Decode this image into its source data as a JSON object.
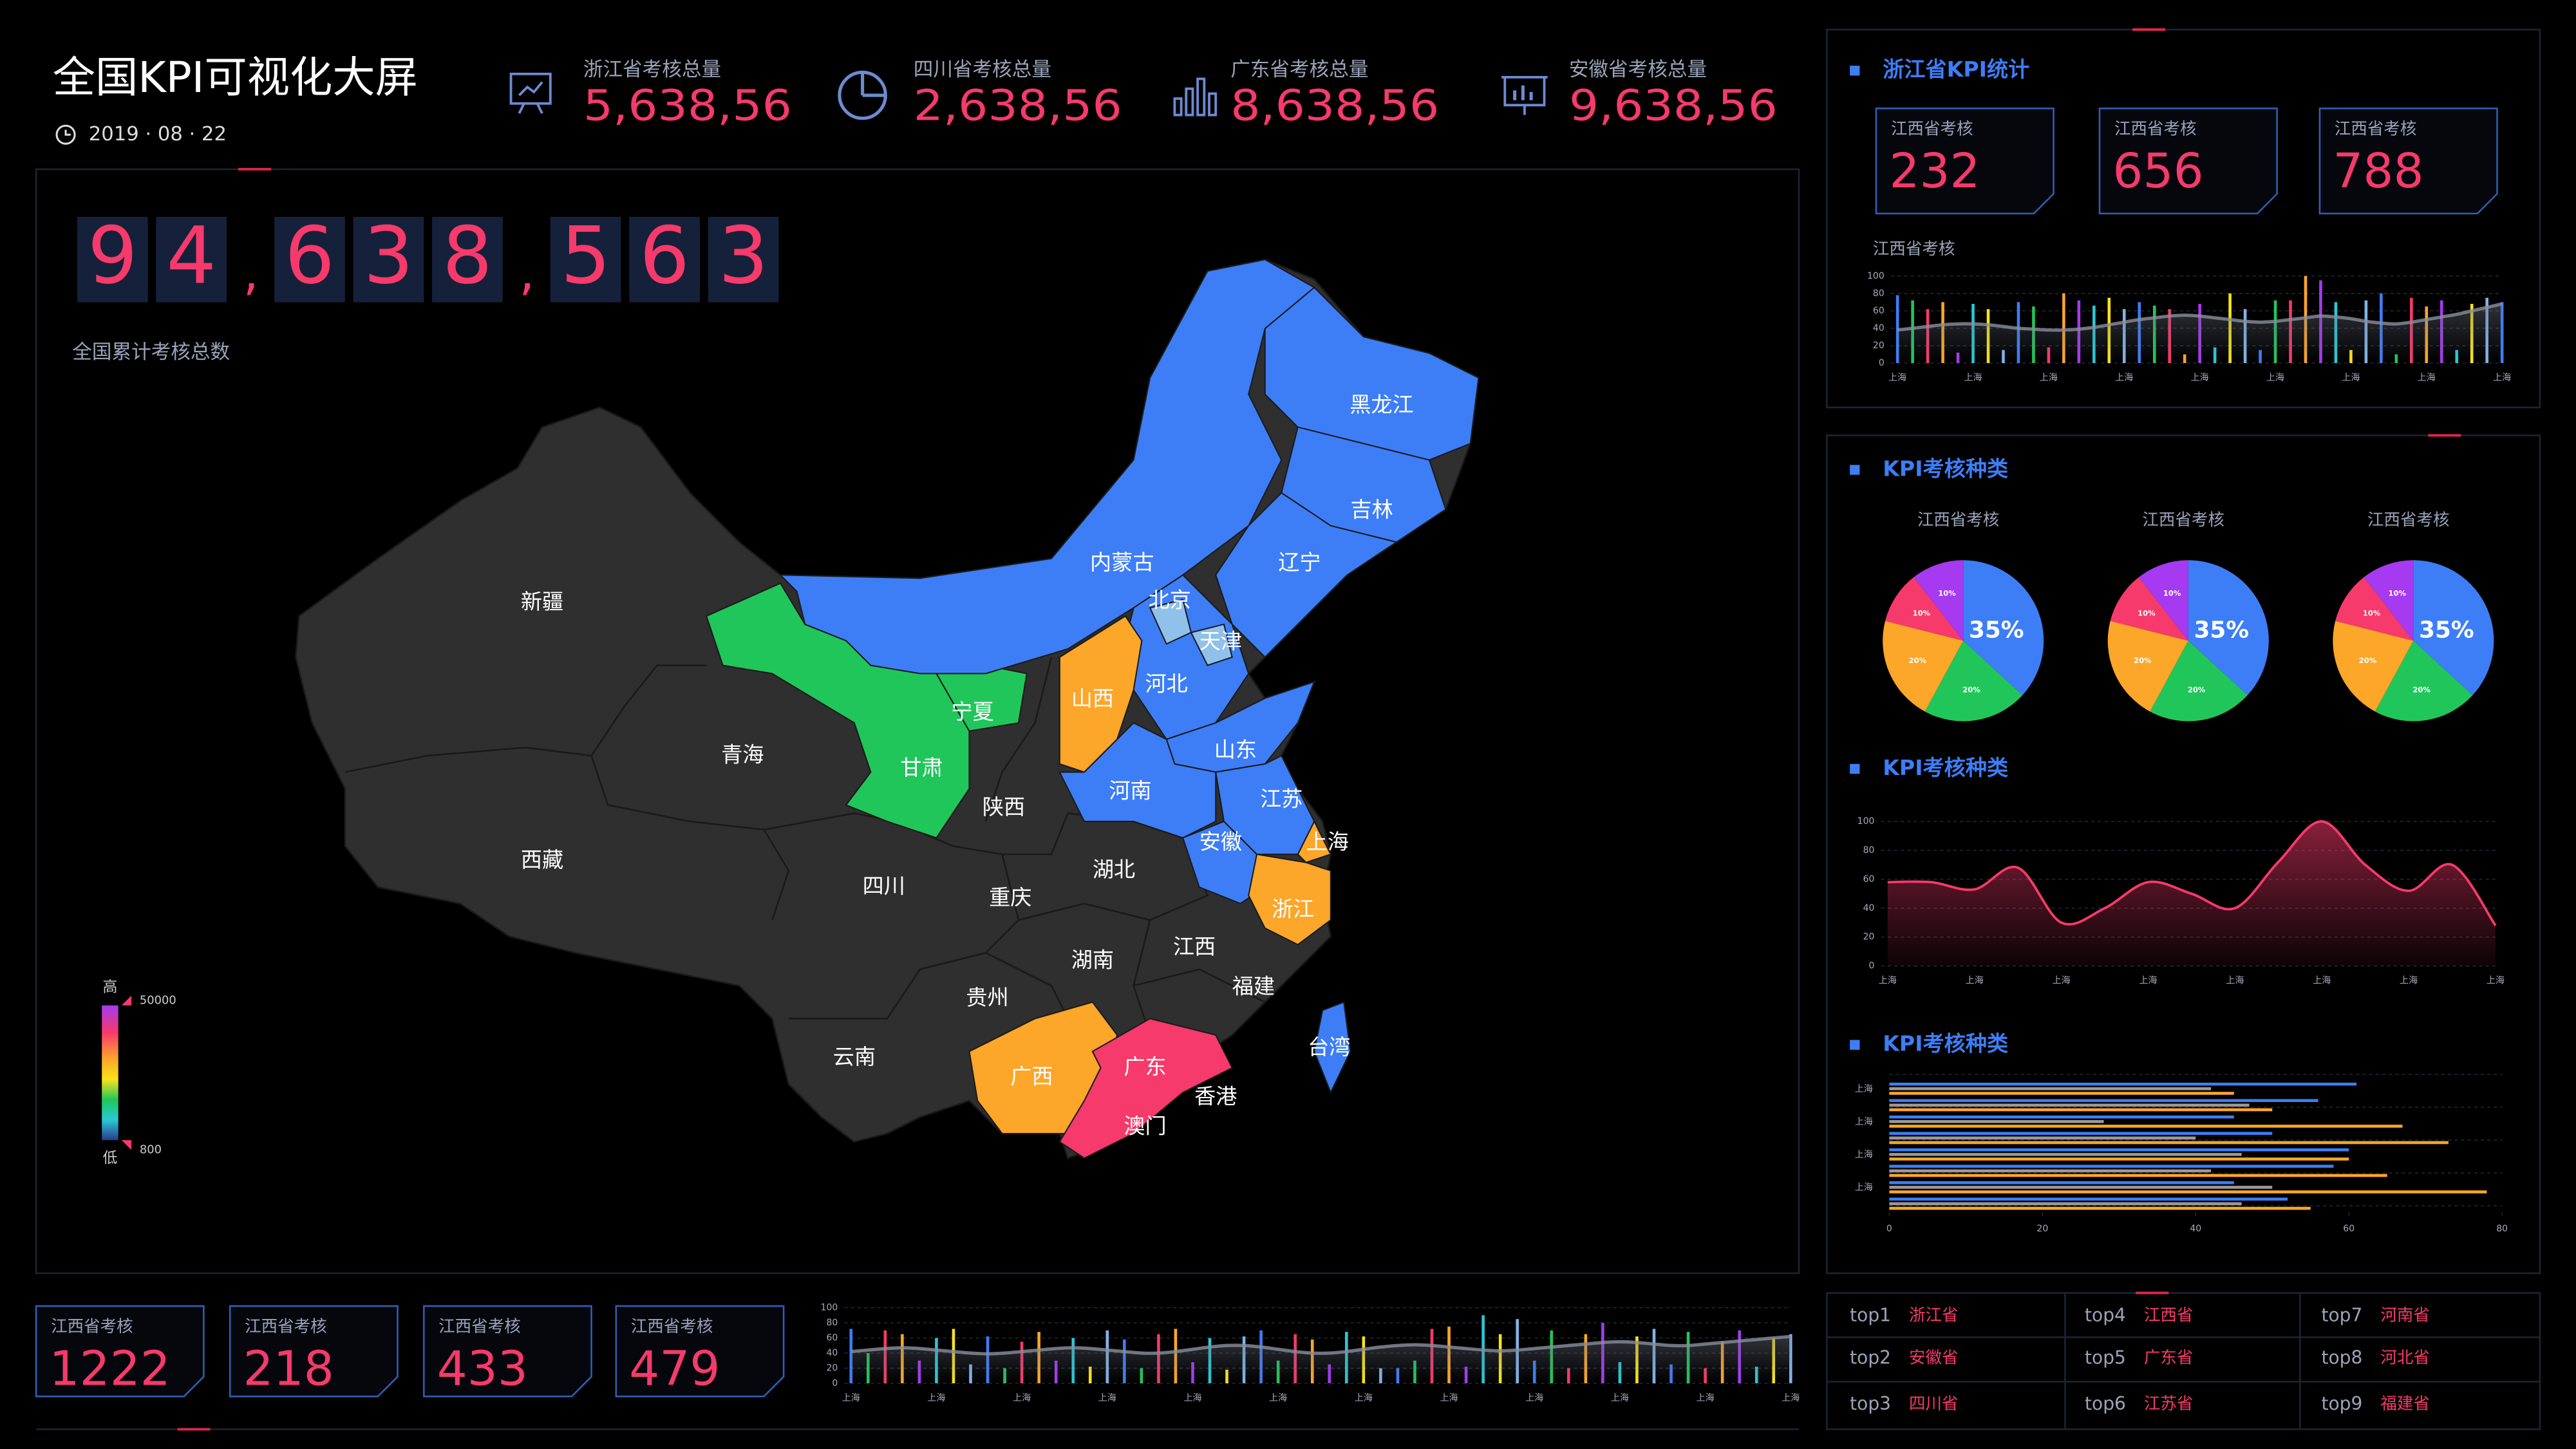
{
  "header": {
    "title": "全国KPI可视化大屏",
    "date": "2019 · 08 · 22",
    "stats": [
      {
        "label": "浙江省考核总量",
        "value": "5,638,56"
      },
      {
        "label": "四川省考核总量",
        "value": "2,638,56"
      },
      {
        "label": "广东省考核总量",
        "value": "8,638,56"
      },
      {
        "label": "安徽省考核总量",
        "value": "9,638,56"
      }
    ]
  },
  "total": {
    "digits": [
      "9",
      "4",
      ",",
      "6",
      "3",
      "8",
      ",",
      "5",
      "6",
      "3"
    ],
    "label": "全国累计考核总数"
  },
  "map": {
    "base_color": "#2f2f2f",
    "provinces": [
      {
        "name": "新疆"
      },
      {
        "name": "西藏"
      },
      {
        "name": "青海"
      },
      {
        "name": "甘肃",
        "color": "#21c65b"
      },
      {
        "name": "宁夏",
        "color": "#21c65b"
      },
      {
        "name": "内蒙古",
        "color": "#3d7ef7"
      },
      {
        "name": "黑龙江",
        "color": "#3d7ef7"
      },
      {
        "name": "吉林",
        "color": "#3d7ef7"
      },
      {
        "name": "辽宁",
        "color": "#3d7ef7"
      },
      {
        "name": "北京",
        "color": "#8fc1ea"
      },
      {
        "name": "天津",
        "color": "#8fc1ea"
      },
      {
        "name": "河北",
        "color": "#3d7ef7"
      },
      {
        "name": "山西",
        "color": "#fca62a"
      },
      {
        "name": "山东",
        "color": "#3d7ef7"
      },
      {
        "name": "河南",
        "color": "#3d7ef7"
      },
      {
        "name": "陕西"
      },
      {
        "name": "四川"
      },
      {
        "name": "重庆"
      },
      {
        "name": "湖北"
      },
      {
        "name": "安徽",
        "color": "#3d7ef7"
      },
      {
        "name": "江苏",
        "color": "#3d7ef7"
      },
      {
        "name": "上海",
        "color": "#fca62a"
      },
      {
        "name": "浙江",
        "color": "#fca62a"
      },
      {
        "name": "江西"
      },
      {
        "name": "湖南"
      },
      {
        "name": "贵州"
      },
      {
        "name": "云南"
      },
      {
        "name": "广西",
        "color": "#fca62a"
      },
      {
        "name": "广东",
        "color": "#f63a6b"
      },
      {
        "name": "福建"
      },
      {
        "name": "香港"
      },
      {
        "name": "澳门"
      },
      {
        "name": "台湾",
        "color": "#3d7ef7"
      }
    ],
    "legend": {
      "high": "高",
      "low": "低",
      "max": 50000,
      "min": 800
    }
  },
  "zhejiang_panel": {
    "title": "浙江省KPI统计",
    "cards": [
      {
        "label": "江西省考核",
        "value": 232
      },
      {
        "label": "江西省考核",
        "value": 656
      },
      {
        "label": "江西省考核",
        "value": 788
      }
    ],
    "chart": {
      "type": "bar",
      "title": "江西省考核",
      "ylim": [
        0,
        100
      ],
      "yticks": [
        0,
        20,
        40,
        60,
        80,
        100
      ],
      "categories": [
        "上海",
        null,
        null,
        null,
        null,
        "上海",
        null,
        null,
        null,
        null,
        "上海",
        null,
        null,
        null,
        null,
        "上海",
        null,
        null,
        null,
        null,
        "上海",
        null,
        null,
        null,
        null,
        "上海",
        null,
        null,
        null,
        null,
        "上海",
        null,
        null,
        null,
        null,
        "上海",
        null,
        null,
        null,
        null,
        "上海"
      ],
      "series": [
        {
          "type": "bar",
          "colors": [
            "#3d7ef7",
            "#21c65b",
            "#f63a6b",
            "#fca62a",
            "#a53af0",
            "#29c9d6",
            "#f7e31b",
            "#7fb4e8"
          ],
          "values": [
            78,
            72,
            62,
            70,
            12,
            68,
            62,
            15,
            70,
            65,
            18,
            80,
            72,
            66,
            75,
            62,
            70,
            66,
            62,
            10,
            68,
            18,
            80,
            62,
            15,
            72,
            72,
            100,
            95,
            70,
            15,
            72,
            80,
            10,
            75,
            65,
            72,
            15,
            68,
            75,
            70
          ]
        },
        {
          "type": "line",
          "color": "#8a8f9c",
          "values": [
            38,
            40,
            42,
            44,
            45,
            45,
            44,
            42,
            40,
            39,
            38,
            38,
            39,
            41,
            44,
            47,
            50,
            52,
            54,
            55,
            54,
            52,
            50,
            48,
            47,
            48,
            50,
            52,
            54,
            53,
            51,
            48,
            46,
            45,
            47,
            50,
            53,
            56,
            60,
            64,
            68
          ]
        }
      ]
    }
  },
  "kpi_panel": {
    "pie_section": {
      "title": "KPI考核种类",
      "colors": [
        "#3d7ef7",
        "#21c65b",
        "#fca62a",
        "#f63a6b",
        "#a53af0"
      ],
      "pies": [
        {
          "title": "江西省考核",
          "values": [
            35,
            20,
            20,
            10,
            10
          ],
          "value_labels": [
            "35%",
            "20%",
            "20%",
            "10%",
            "10%"
          ]
        },
        {
          "title": "江西省考核",
          "values": [
            35,
            20,
            20,
            10,
            10
          ],
          "value_labels": [
            "35%",
            "20%",
            "20%",
            "10%",
            "10%"
          ]
        },
        {
          "title": "江西省考核",
          "values": [
            35,
            20,
            20,
            10,
            10
          ],
          "value_labels": [
            "35%",
            "20%",
            "20%",
            "10%",
            "10%"
          ]
        }
      ]
    },
    "area_section": {
      "title": "KPI考核种类",
      "chart": {
        "type": "area",
        "ylim": [
          0,
          100
        ],
        "yticks": [
          0,
          20,
          40,
          60,
          80,
          100
        ],
        "categories": [
          "上海",
          null,
          "上海",
          null,
          "上海",
          null,
          "上海",
          null,
          "上海",
          null,
          "上海",
          null,
          "上海",
          null,
          "上海"
        ],
        "series": [
          {
            "type": "area",
            "color": "#f63a6b",
            "values": [
              58,
              58,
              53,
              68,
              30,
              40,
              58,
              50,
              40,
              72,
              100,
              70,
              52,
              70,
              28
            ]
          }
        ]
      }
    },
    "bar_section": {
      "title": "KPI考核种类",
      "chart": {
        "type": "hbar",
        "xlim": [
          0,
          80
        ],
        "xticks": [
          0,
          20,
          40,
          60,
          80
        ],
        "categories": [
          "上海",
          null,
          "上海",
          null,
          "上海",
          null,
          "上海",
          null
        ],
        "series": [
          {
            "color": "#3d7ef7",
            "values": [
              61,
              56,
              45,
              50,
              60,
              58,
              45,
              52
            ]
          },
          {
            "color": "#9a9a9a",
            "values": [
              42,
              47,
              28,
              40,
              46,
              42,
              50,
              46
            ]
          },
          {
            "color": "#fca62a",
            "values": [
              45,
              50,
              67,
              73,
              60,
              65,
              78,
              55
            ]
          }
        ]
      }
    }
  },
  "ranking": [
    {
      "rank": "top1",
      "province": "浙江省"
    },
    {
      "rank": "top2",
      "province": "安徽省"
    },
    {
      "rank": "top3",
      "province": "四川省"
    },
    {
      "rank": "top4",
      "province": "江西省"
    },
    {
      "rank": "top5",
      "province": "广东省"
    },
    {
      "rank": "top6",
      "province": "江苏省"
    },
    {
      "rank": "top7",
      "province": "河南省"
    },
    {
      "rank": "top8",
      "province": "河北省"
    },
    {
      "rank": "top9",
      "province": "福建省"
    }
  ],
  "bottom_cards": [
    {
      "label": "江西省考核",
      "value": 1222
    },
    {
      "label": "江西省考核",
      "value": 218
    },
    {
      "label": "江西省考核",
      "value": 433
    },
    {
      "label": "江西省考核",
      "value": 479
    }
  ],
  "bottom_chart": {
    "type": "bar",
    "ylim": [
      0,
      100
    ],
    "yticks": [
      0,
      20,
      40,
      60,
      80,
      100
    ],
    "categories": [
      "上海",
      null,
      null,
      null,
      null,
      "上海",
      null,
      null,
      null,
      null,
      "上海",
      null,
      null,
      null,
      null,
      "上海",
      null,
      null,
      null,
      null,
      "上海",
      null,
      null,
      null,
      null,
      "上海",
      null,
      null,
      null,
      null,
      "上海",
      null,
      null,
      null,
      null,
      "上海",
      null,
      null,
      null,
      null,
      "上海",
      null,
      null,
      null,
      null,
      "上海",
      null,
      null,
      null,
      null,
      "上海",
      null,
      null,
      null,
      null,
      "上海"
    ],
    "series": [
      {
        "type": "bar",
        "colors": [
          "#3d7ef7",
          "#21c65b",
          "#f63a6b",
          "#fca62a",
          "#a53af0",
          "#29c9d6",
          "#f7e31b",
          "#7fb4e8"
        ],
        "values": [
          72,
          40,
          70,
          65,
          30,
          60,
          72,
          25,
          62,
          20,
          55,
          68,
          30,
          60,
          22,
          70,
          58,
          20,
          65,
          72,
          28,
          60,
          18,
          62,
          70,
          30,
          65,
          58,
          25,
          68,
          62,
          20,
          20,
          30,
          72,
          75,
          22,
          90,
          65,
          85,
          30,
          70,
          20,
          65,
          80,
          28,
          62,
          72,
          25,
          68,
          20,
          55,
          70,
          22,
          60,
          65
        ]
      },
      {
        "type": "line",
        "color": "#8a8f9c",
        "values": [
          42,
          44,
          46,
          47,
          46,
          44,
          42,
          40,
          39,
          40,
          42,
          44,
          46,
          47,
          46,
          44,
          42,
          40,
          40,
          42,
          45,
          48,
          50,
          50,
          48,
          45,
          42,
          40,
          40,
          42,
          45,
          48,
          50,
          51,
          50,
          48,
          46,
          44,
          43,
          44,
          46,
          48,
          50,
          52,
          54,
          55,
          54,
          52,
          50,
          50,
          52,
          54,
          56,
          58,
          60,
          62
        ]
      }
    ]
  }
}
